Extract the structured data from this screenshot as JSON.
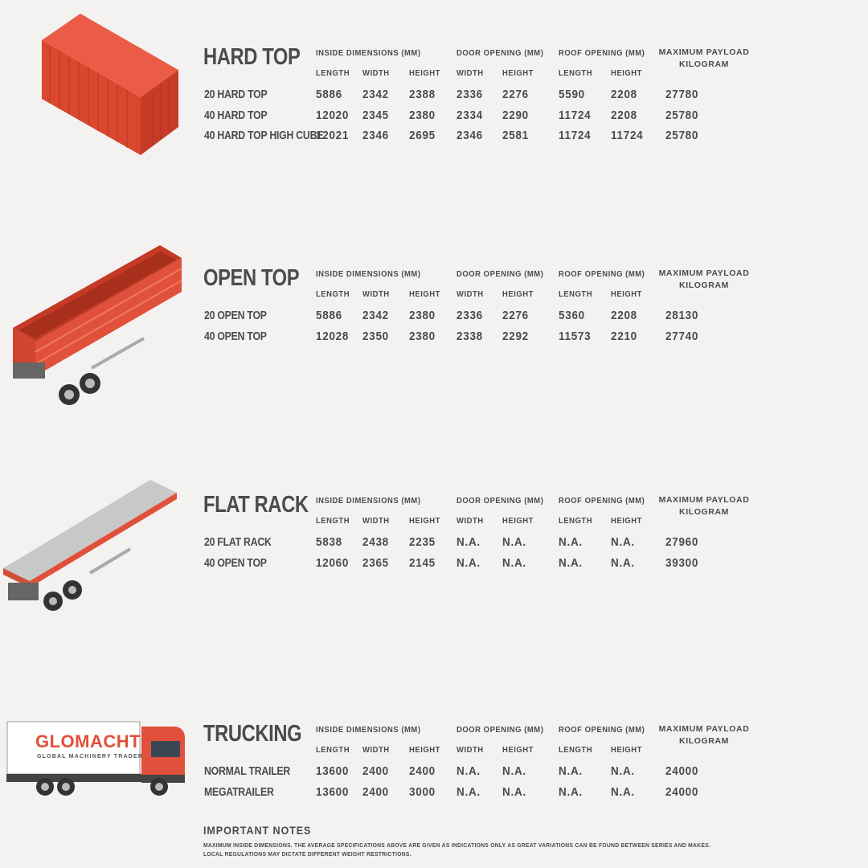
{
  "columns": {
    "inside_dimensions": "INSIDE DIMENSIONS (MM)",
    "door_opening": "DOOR OPENING (MM)",
    "roof_opening": "ROOF OPENING (MM)",
    "max_payload_line1": "MAXIMUM PAYLOAD",
    "max_payload_line2": "KILOGRAM",
    "sub": [
      "LENGTH",
      "WIDTH",
      "HEIGHT",
      "WIDTH",
      "HEIGHT",
      "LENGTH",
      "HEIGHT"
    ]
  },
  "sections": [
    {
      "title": "HARD TOP",
      "illustration": "hard-top-container-icon",
      "rows": [
        {
          "name": "20 HARD TOP",
          "values": [
            "5886",
            "2342",
            "2388",
            "2336",
            "2276",
            "5590",
            "2208",
            "27780"
          ]
        },
        {
          "name": "40 HARD TOP",
          "values": [
            "12020",
            "2345",
            "2380",
            "2334",
            "2290",
            "11724",
            "2208",
            "25780"
          ]
        },
        {
          "name": "40 HARD TOP HIGH CUBE",
          "values": [
            "12021",
            "2346",
            "2695",
            "2346",
            "2581",
            "11724",
            "11724",
            "25780"
          ]
        }
      ]
    },
    {
      "title": "OPEN TOP",
      "illustration": "open-top-trailer-icon",
      "rows": [
        {
          "name": "20 OPEN TOP",
          "values": [
            "5886",
            "2342",
            "2380",
            "2336",
            "2276",
            "5360",
            "2208",
            "28130"
          ]
        },
        {
          "name": "40 OPEN TOP",
          "values": [
            "12028",
            "2350",
            "2380",
            "2338",
            "2292",
            "11573",
            "2210",
            "27740"
          ]
        }
      ]
    },
    {
      "title": "FLAT RACK",
      "illustration": "flat-rack-trailer-icon",
      "rows": [
        {
          "name": "20 FLAT RACK",
          "values": [
            "5838",
            "2438",
            "2235",
            "N.A.",
            "N.A.",
            "N.A.",
            "N.A.",
            "27960"
          ]
        },
        {
          "name": "40 OPEN TOP",
          "values": [
            "12060",
            "2365",
            "2145",
            "N.A.",
            "N.A.",
            "N.A.",
            "N.A.",
            "39300"
          ]
        }
      ]
    },
    {
      "title": "TRUCKING",
      "illustration": "truck-icon",
      "rows": [
        {
          "name": "NORMAL TRAILER",
          "values": [
            "13600",
            "2400",
            "2400",
            "N.A.",
            "N.A.",
            "N.A.",
            "N.A.",
            "24000"
          ]
        },
        {
          "name": "MEGATRAILER",
          "values": [
            "13600",
            "2400",
            "3000",
            "N.A.",
            "N.A.",
            "N.A.",
            "N.A.",
            "24000"
          ]
        }
      ]
    }
  ],
  "logo": {
    "brand": "GLOMACHT",
    "tagline": "GLOBAL MACHINERY TRADER"
  },
  "notes": {
    "title": "IMPORTANT NOTES",
    "line1": "MAXIMUM INSIDE DIMENSIONS. THE AVERAGE SPECIFICATIONS ABOVE ARE GIVEN AS INDICATIONS ONLY AS GREAT VARIATIONS CAN BE FOUND BETWEEN SERIES AND MAKES.",
    "line2": "LOCAL REGULATIONS MAY DICTATE DIFFERENT WEIGHT RESTRICTIONS."
  },
  "colors": {
    "text": "#4a4b4d",
    "container_red": "#e0503a",
    "background": "#f3f2f0",
    "flatbed_grey": "#c8c8c8"
  }
}
